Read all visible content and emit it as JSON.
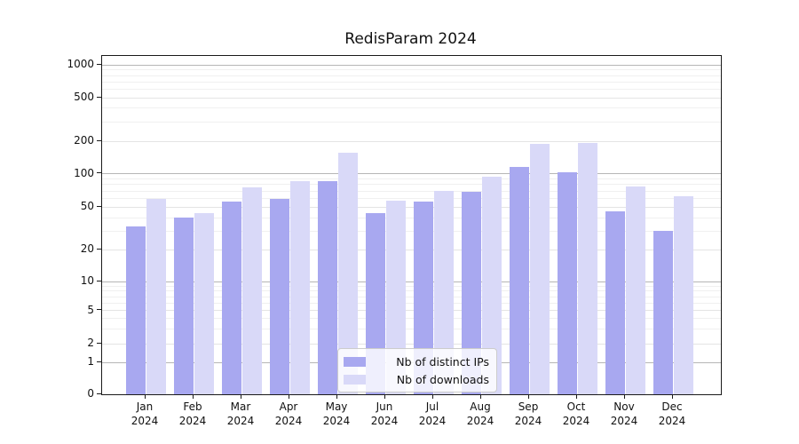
{
  "chart_data": {
    "type": "bar",
    "title": "RedisParam 2024",
    "categories": [
      "Jan 2024",
      "Feb 2024",
      "Mar 2024",
      "Apr 2024",
      "May 2024",
      "Jun 2024",
      "Jul 2024",
      "Aug 2024",
      "Sep 2024",
      "Oct 2024",
      "Nov 2024",
      "Dec 2024"
    ],
    "months": [
      {
        "month": "Jan",
        "year": "2024"
      },
      {
        "month": "Feb",
        "year": "2024"
      },
      {
        "month": "Mar",
        "year": "2024"
      },
      {
        "month": "Apr",
        "year": "2024"
      },
      {
        "month": "May",
        "year": "2024"
      },
      {
        "month": "Jun",
        "year": "2024"
      },
      {
        "month": "Jul",
        "year": "2024"
      },
      {
        "month": "Aug",
        "year": "2024"
      },
      {
        "month": "Sep",
        "year": "2024"
      },
      {
        "month": "Oct",
        "year": "2024"
      },
      {
        "month": "Nov",
        "year": "2024"
      },
      {
        "month": "Dec",
        "year": "2024"
      }
    ],
    "series": [
      {
        "name": "Nb of distinct IPs",
        "color": "#a8a8f0",
        "values": [
          33,
          40,
          56,
          59,
          86,
          44,
          56,
          69,
          115,
          103,
          46,
          30
        ]
      },
      {
        "name": "Nb of downloads",
        "color": "#d9d9f8",
        "values": [
          59,
          44,
          76,
          86,
          158,
          57,
          70,
          95,
          188,
          193,
          77,
          63
        ]
      }
    ],
    "y_axis": {
      "scale": "symlog",
      "ticks": [
        {
          "label": "0",
          "value": 0
        },
        {
          "label": "1",
          "value": 1
        },
        {
          "label": "2",
          "value": 2
        },
        {
          "label": "5",
          "value": 5
        },
        {
          "label": "10",
          "value": 10
        },
        {
          "label": "20",
          "value": 20
        },
        {
          "label": "50",
          "value": 50
        },
        {
          "label": "100",
          "value": 100
        },
        {
          "label": "200",
          "value": 200
        },
        {
          "label": "500",
          "value": 500
        },
        {
          "label": "1000",
          "value": 1000
        }
      ]
    },
    "legend": {
      "position": "lower center",
      "entries": [
        "Nb of distinct IPs",
        "Nb of downloads"
      ]
    },
    "grid": "on",
    "colors": {
      "grid_major": "#b6b6b6",
      "grid_tick": "#e4e4e4",
      "grid_minor": "#f0f0f0",
      "axis": "#1a1a1a"
    }
  }
}
